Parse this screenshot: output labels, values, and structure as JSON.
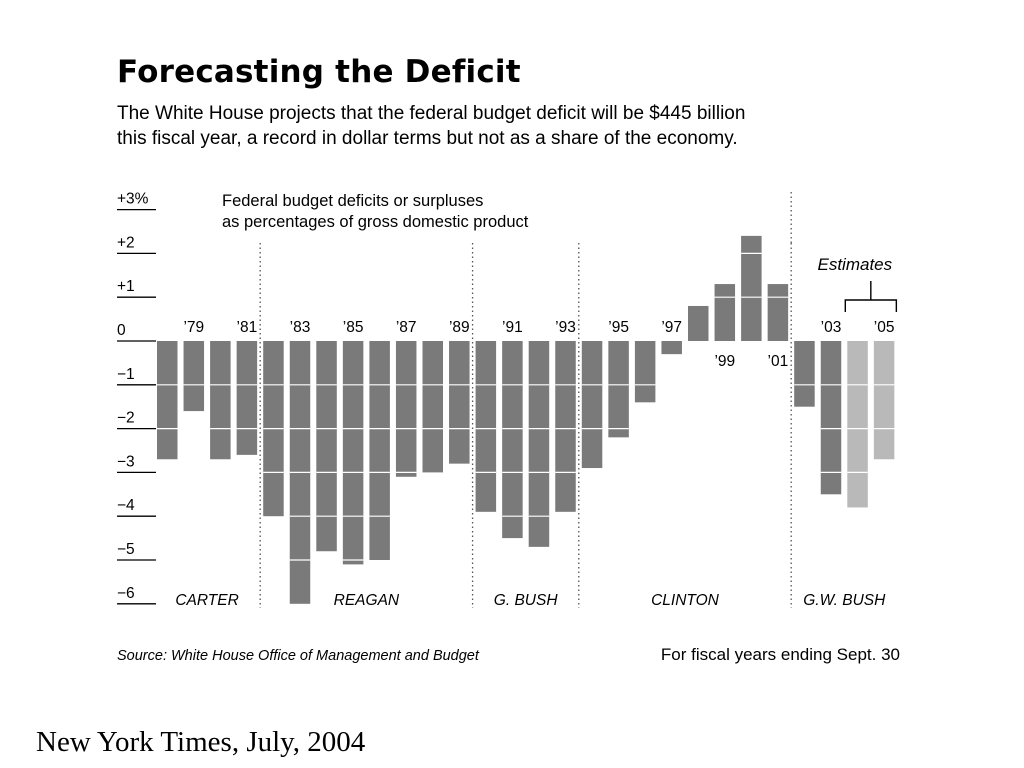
{
  "chart_data": {
    "type": "bar",
    "title": "Forecasting the Deficit",
    "subtitle_lines": [
      "The White House projects that the federal budget deficit will be $445 billion",
      "this fiscal year, a record in dollar terms but not as a share of the economy."
    ],
    "annotation_lines": [
      "Federal budget deficits or surpluses",
      "as percentages of gross domestic product"
    ],
    "ylim": [
      -6,
      3
    ],
    "y_ticks": [
      {
        "value": 3,
        "label": "+3%"
      },
      {
        "value": 2,
        "label": "+2"
      },
      {
        "value": 1,
        "label": "+1"
      },
      {
        "value": 0,
        "label": "0"
      },
      {
        "value": -1,
        "label": "−1"
      },
      {
        "value": -2,
        "label": "−2"
      },
      {
        "value": -3,
        "label": "−3"
      },
      {
        "value": -4,
        "label": "−4"
      },
      {
        "value": -5,
        "label": "−5"
      },
      {
        "value": -6,
        "label": "−6"
      }
    ],
    "years": [
      1978,
      1979,
      1980,
      1981,
      1982,
      1983,
      1984,
      1985,
      1986,
      1987,
      1988,
      1989,
      1990,
      1991,
      1992,
      1993,
      1994,
      1995,
      1996,
      1997,
      1998,
      1999,
      2000,
      2001,
      2002,
      2003,
      2004,
      2005
    ],
    "values": [
      -2.7,
      -1.6,
      -2.7,
      -2.6,
      -4.0,
      -6.0,
      -4.8,
      -5.1,
      -5.0,
      -3.1,
      -3.0,
      -2.8,
      -3.9,
      -4.5,
      -4.7,
      -3.9,
      -2.9,
      -2.2,
      -1.4,
      -0.3,
      0.8,
      1.3,
      2.4,
      1.3,
      -1.5,
      -3.5,
      -3.8,
      -2.7
    ],
    "estimated": [
      false,
      false,
      false,
      false,
      false,
      false,
      false,
      false,
      false,
      false,
      false,
      false,
      false,
      false,
      false,
      false,
      false,
      false,
      false,
      false,
      false,
      false,
      false,
      false,
      false,
      false,
      true,
      true
    ],
    "x_labels": [
      {
        "year": 1979,
        "label": "’79",
        "position": "top"
      },
      {
        "year": 1981,
        "label": "’81",
        "position": "top"
      },
      {
        "year": 1983,
        "label": "’83",
        "position": "top"
      },
      {
        "year": 1985,
        "label": "’85",
        "position": "top"
      },
      {
        "year": 1987,
        "label": "’87",
        "position": "top"
      },
      {
        "year": 1989,
        "label": "’89",
        "position": "top"
      },
      {
        "year": 1991,
        "label": "’91",
        "position": "top"
      },
      {
        "year": 1993,
        "label": "’93",
        "position": "top"
      },
      {
        "year": 1995,
        "label": "’95",
        "position": "top"
      },
      {
        "year": 1997,
        "label": "’97",
        "position": "top"
      },
      {
        "year": 1999,
        "label": "’99",
        "position": "bottom"
      },
      {
        "year": 2001,
        "label": "’01",
        "position": "bottom"
      },
      {
        "year": 2003,
        "label": "’03",
        "position": "top"
      },
      {
        "year": 2005,
        "label": "’05",
        "position": "top"
      }
    ],
    "administrations": [
      {
        "name": "CARTER",
        "start": 1978,
        "end": 1981
      },
      {
        "name": "REAGAN",
        "start": 1982,
        "end": 1989
      },
      {
        "name": "G. BUSH",
        "start": 1990,
        "end": 1993
      },
      {
        "name": "CLINTON",
        "start": 1994,
        "end": 2001
      },
      {
        "name": "G.W. BUSH",
        "start": 2002,
        "end": 2005
      }
    ],
    "estimates_label": "Estimates",
    "grid": false,
    "colors": {
      "actual": "#7a7a7a",
      "estimate": "#b9b9b9",
      "divider": "#555555",
      "bar_gridline": "#ffffff"
    }
  },
  "footer": {
    "source": "Source: White House Office of Management and Budget",
    "note": "For fiscal years ending Sept. 30"
  },
  "caption": "New York Times, July, 2004"
}
